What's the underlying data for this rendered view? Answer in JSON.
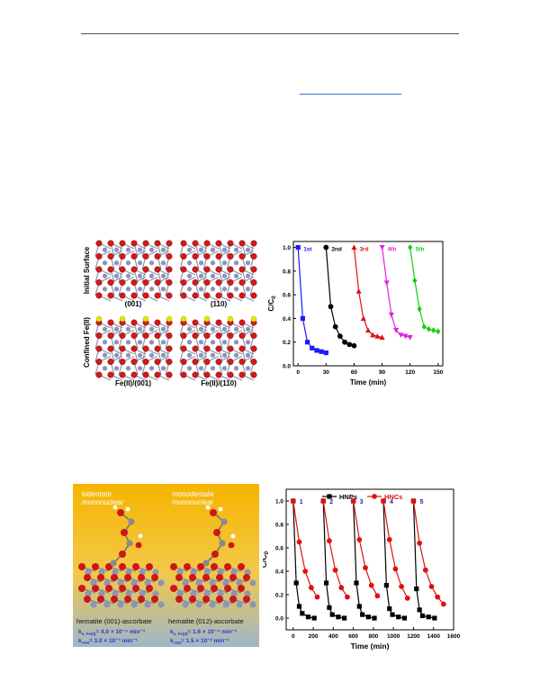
{
  "figure1": {
    "structures": {
      "row1_label": "Initial Surface",
      "row2_label": "Confined Fe(II)",
      "top_left_caption": "(001)",
      "top_right_caption": "(110)",
      "bottom_left_caption": "Fe(II)/(001)",
      "bottom_right_caption": "Fe(II)/(110)"
    },
    "chart_data": {
      "type": "line",
      "xlabel": "Time (min)",
      "ylabel": "C/C0",
      "ylabel_main": "C/C",
      "ylabel_sub": "0",
      "xlim": [
        -5,
        155
      ],
      "ylim": [
        0.0,
        1.05
      ],
      "xticks": [
        0,
        30,
        60,
        90,
        120,
        150
      ],
      "yticks": [
        "0.0",
        "0.2",
        "0.4",
        "0.6",
        "0.8",
        "1.0"
      ],
      "series": [
        {
          "name": "1st",
          "color": "#1a1aff",
          "marker": "square",
          "x": [
            0,
            5,
            10,
            15,
            20,
            25,
            30
          ],
          "y": [
            1.0,
            0.4,
            0.2,
            0.15,
            0.13,
            0.12,
            0.11
          ]
        },
        {
          "name": "2nd",
          "color": "#000000",
          "marker": "circle",
          "x": [
            30,
            35,
            40,
            45,
            50,
            55,
            60
          ],
          "y": [
            1.0,
            0.5,
            0.33,
            0.25,
            0.2,
            0.18,
            0.17
          ]
        },
        {
          "name": "3rd",
          "color": "#e01010",
          "marker": "triangle",
          "x": [
            60,
            65,
            70,
            75,
            80,
            85,
            90
          ],
          "y": [
            1.0,
            0.63,
            0.4,
            0.3,
            0.26,
            0.25,
            0.24
          ]
        },
        {
          "name": "4th",
          "color": "#e020e0",
          "marker": "triangle-down",
          "x": [
            90,
            95,
            100,
            105,
            110,
            115,
            120
          ],
          "y": [
            1.0,
            0.7,
            0.43,
            0.3,
            0.26,
            0.25,
            0.24
          ]
        },
        {
          "name": "5th",
          "color": "#10d010",
          "marker": "diamond",
          "x": [
            120,
            125,
            130,
            135,
            140,
            145,
            150
          ],
          "y": [
            1.0,
            0.72,
            0.48,
            0.33,
            0.31,
            0.3,
            0.29
          ]
        }
      ]
    }
  },
  "figure2": {
    "left": {
      "label_bidentate_1": "bidentate",
      "label_bidentate_2": "mononuclear",
      "label_monodentate_1": "monodentate",
      "label_monodentate_2": "mononuclear",
      "caption_left": "hematite (001)-ascorbate",
      "caption_right": "hematite (012)-ascorbate",
      "rate_left_1": "k",
      "rate_left_1_sub": "e, Fe(II)",
      "rate_left_1_val": "= 4.0 × 10⁻⁵ min⁻¹",
      "rate_left_2": "k",
      "rate_left_2_sub": "•OH",
      "rate_left_2_val": "= 3.0 × 10⁻³ min⁻¹",
      "rate_right_1": "k",
      "rate_right_1_sub": "e, Fe(II)",
      "rate_right_1_val": "= 1.6 × 10⁻⁴ min⁻¹",
      "rate_right_2": "k",
      "rate_right_2_sub": "•OH",
      "rate_right_2_val": "= 1.5 × 10⁻² min⁻¹"
    },
    "chart_data": {
      "type": "line",
      "xlabel": "Time (min)",
      "ylabel": "C/C0",
      "ylabel_main": "C/C",
      "ylabel_sub": "0",
      "xlim": [
        -70,
        1600
      ],
      "ylim": [
        -0.1,
        1.1
      ],
      "xticks": [
        0,
        200,
        400,
        600,
        800,
        1000,
        1200,
        1400,
        1600
      ],
      "yticks": [
        "0.0",
        "0.2",
        "0.4",
        "0.6",
        "0.8",
        "1.0"
      ],
      "cycle_labels": [
        "1",
        "2",
        "3",
        "4",
        "5"
      ],
      "cycle_label_x": [
        0,
        300,
        600,
        900,
        1200
      ],
      "series": [
        {
          "name": "HNPs",
          "color": "#000000",
          "marker": "square",
          "x": [
            0,
            30,
            60,
            90,
            150,
            210,
            300,
            330,
            360,
            390,
            450,
            510,
            600,
            630,
            660,
            690,
            750,
            810,
            900,
            930,
            960,
            990,
            1050,
            1110,
            1200,
            1230,
            1260,
            1290,
            1350,
            1410
          ],
          "y": [
            1.0,
            0.3,
            0.1,
            0.04,
            0.01,
            0.0,
            1.0,
            0.3,
            0.09,
            0.03,
            0.01,
            0.0,
            1.0,
            0.3,
            0.1,
            0.03,
            0.01,
            0.0,
            1.0,
            0.28,
            0.08,
            0.03,
            0.01,
            0.0,
            1.0,
            0.25,
            0.07,
            0.02,
            0.01,
            0.0
          ]
        },
        {
          "name": "HNCs",
          "color": "#e01010",
          "marker": "circle",
          "x": [
            0,
            60,
            120,
            180,
            240,
            300,
            360,
            420,
            480,
            540,
            600,
            660,
            720,
            780,
            840,
            900,
            960,
            1020,
            1080,
            1140,
            1200,
            1260,
            1320,
            1380,
            1440,
            1500
          ],
          "y": [
            1.0,
            0.65,
            0.4,
            0.26,
            0.18,
            1.0,
            0.66,
            0.41,
            0.26,
            0.18,
            1.0,
            0.67,
            0.43,
            0.28,
            0.19,
            1.0,
            0.67,
            0.42,
            0.27,
            0.17,
            1.0,
            0.64,
            0.41,
            0.27,
            0.18,
            0.12
          ]
        }
      ]
    }
  }
}
